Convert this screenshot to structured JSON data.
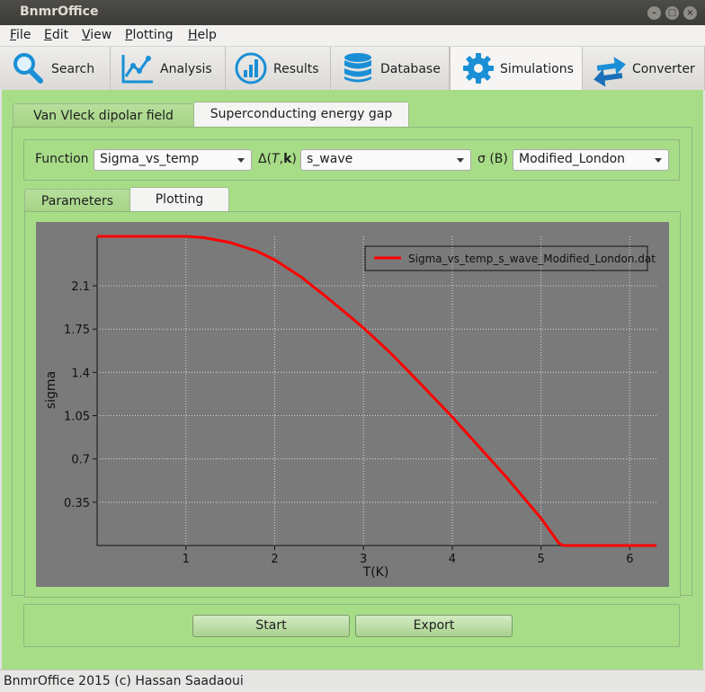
{
  "window": {
    "title": "BnmrOffice"
  },
  "menu": [
    {
      "label": "File",
      "mn": "F",
      "rest": "ile"
    },
    {
      "label": "Edit",
      "mn": "E",
      "rest": "dit"
    },
    {
      "label": "View",
      "mn": "V",
      "rest": "iew"
    },
    {
      "label": "Plotting",
      "mn": "P",
      "rest": "lotting"
    },
    {
      "label": "Help",
      "mn": "H",
      "rest": "elp"
    }
  ],
  "main_tabs": [
    {
      "label": "Search",
      "icon": "search-icon"
    },
    {
      "label": "Analysis",
      "icon": "analysis-chart-icon"
    },
    {
      "label": "Results",
      "icon": "results-bar-icon"
    },
    {
      "label": "Database",
      "icon": "database-icon"
    },
    {
      "label": "Simulations",
      "icon": "gear-icon",
      "active": true
    },
    {
      "label": "Converter",
      "icon": "converter-arrows-icon"
    }
  ],
  "sim_tabs": [
    {
      "label": "Van Vleck dipolar field"
    },
    {
      "label": "Superconducting energy gap",
      "active": true
    }
  ],
  "function_row": {
    "function_label": "Function",
    "function_value": "Sigma_vs_temp",
    "delta_label_prefix": "Δ(",
    "delta_label_T": "T",
    "delta_label_comma": ",",
    "delta_label_k": "k",
    "delta_label_suffix": ")",
    "delta_value": "s_wave",
    "sigma_label": "σ (B)",
    "sigma_value": "Modified_London"
  },
  "inner_tabs": [
    {
      "label": "Parameters"
    },
    {
      "label": "Plotting",
      "active": true
    }
  ],
  "buttons": {
    "start": "Start",
    "export": "Export"
  },
  "status": "BnmrOffice 2015 (c) Hassan Saadaoui",
  "colors": {
    "workarea": "#a8dd88",
    "plot_bg": "#7a7a7a",
    "curve": "#ff0000",
    "titlebar": "#3c3b37"
  },
  "chart_data": {
    "type": "line",
    "title": "",
    "xlabel": "T(K)",
    "ylabel": "sigma",
    "xlim": [
      0,
      6.3
    ],
    "ylim": [
      0,
      2.5
    ],
    "xticks": [
      1,
      2,
      3,
      4,
      5,
      6
    ],
    "xtick_labels": [
      "1",
      "2",
      "3",
      "4",
      "5",
      "6"
    ],
    "yticks": [
      0.35,
      0.7,
      1.05,
      1.4,
      1.75,
      2.1
    ],
    "ytick_labels": [
      "0.35",
      "0.7",
      "1.05",
      "1.4",
      "1.75",
      "2.1"
    ],
    "grid": true,
    "legend_position": "top-right",
    "series": [
      {
        "name": "Sigma_vs_temp_s_wave_Modified_London.dat",
        "color": "#ff0000",
        "x": [
          0,
          0.5,
          1.0,
          1.2,
          1.5,
          1.8,
          2.0,
          2.3,
          2.6,
          3.0,
          3.3,
          3.6,
          4.0,
          4.3,
          4.6,
          5.0,
          5.2,
          5.25,
          5.5,
          6.0,
          6.3
        ],
        "y": [
          2.5,
          2.5,
          2.5,
          2.49,
          2.45,
          2.38,
          2.31,
          2.17,
          2.0,
          1.76,
          1.56,
          1.34,
          1.04,
          0.8,
          0.56,
          0.22,
          0.02,
          0.0,
          0.0,
          0.0,
          0.0
        ]
      }
    ]
  }
}
